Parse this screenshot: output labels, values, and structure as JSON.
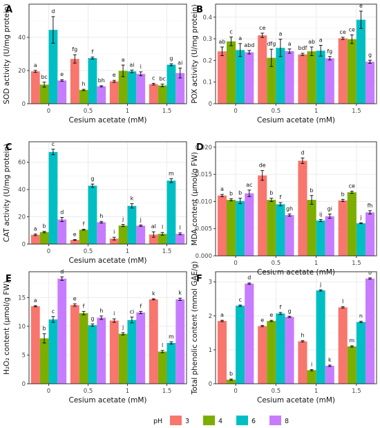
{
  "legend": {
    "title": "pH",
    "entries": [
      {
        "label": "3",
        "color": "#F8766D"
      },
      {
        "label": "4",
        "color": "#7CAE00"
      },
      {
        "label": "6",
        "color": "#00BFC4"
      },
      {
        "label": "8",
        "color": "#C77CFF"
      }
    ]
  },
  "chart_data": [
    {
      "panel": "A",
      "type": "bar",
      "xlabel": "Cesium acetate (mM)",
      "ylabel": "SOD activity (U/mg protein)",
      "categories": [
        "0",
        "0.5",
        "1",
        "1.5"
      ],
      "ylim": [
        0,
        60
      ],
      "yticks": [
        0,
        20,
        40
      ],
      "series": [
        {
          "name": "3",
          "values": [
            19.5,
            27.0,
            13.5,
            11.8
          ],
          "errors": [
            0.6,
            2.5,
            0.6,
            0.5
          ],
          "letters": [
            "a",
            "fg",
            "e",
            "c"
          ]
        },
        {
          "name": "4",
          "values": [
            11.5,
            8.3,
            19.8,
            11.0
          ],
          "errors": [
            1.5,
            0.4,
            3.5,
            0.8
          ],
          "letters": [
            "bc",
            "h",
            "a",
            "bc"
          ]
        },
        {
          "name": "6",
          "values": [
            44.5,
            27.5,
            19.5,
            23.5
          ],
          "errors": [
            8.0,
            0.6,
            0.8,
            0.6
          ],
          "letters": [
            "d",
            "f",
            "ai",
            "g"
          ]
        },
        {
          "name": "8",
          "values": [
            14.0,
            10.5,
            18.0,
            18.5
          ],
          "errors": [
            0.5,
            0.4,
            1.2,
            3.0
          ],
          "letters": [
            "e",
            "bh",
            "i",
            "ai"
          ]
        }
      ]
    },
    {
      "panel": "B",
      "type": "bar",
      "xlabel": "Cesium acetate (mM)",
      "ylabel": "POX activity (U/mg protein)",
      "categories": [
        "0",
        "0.5",
        "1",
        "1.5"
      ],
      "ylim": [
        0,
        0.46
      ],
      "yticks": [
        0.0,
        0.1,
        0.2,
        0.3,
        0.4
      ],
      "series": [
        {
          "name": "3",
          "values": [
            0.242,
            0.316,
            0.228,
            0.302
          ],
          "errors": [
            0.02,
            0.01,
            0.005,
            0.005
          ],
          "letters": [
            "ab",
            "ce",
            "bdf",
            "ce"
          ]
        },
        {
          "name": "4",
          "values": [
            0.288,
            0.212,
            0.242,
            0.298
          ],
          "errors": [
            0.02,
            0.04,
            0.02,
            0.02
          ],
          "letters": [
            "c",
            "dfg",
            "ab",
            "ce"
          ]
        },
        {
          "name": "6",
          "values": [
            0.248,
            0.258,
            0.245,
            0.388
          ],
          "errors": [
            0.03,
            0.04,
            0.025,
            0.04
          ],
          "letters": [
            "a",
            "a",
            "a",
            "e"
          ]
        },
        {
          "name": "8",
          "values": [
            0.238,
            0.243,
            0.21,
            0.194
          ],
          "errors": [
            0.008,
            0.01,
            0.008,
            0.007
          ],
          "letters": [
            "abd",
            "a",
            "fg",
            "g"
          ]
        }
      ]
    },
    {
      "panel": "C",
      "type": "bar",
      "xlabel": "Cesium acetate (mM)",
      "ylabel": "CAT activity (U/mg protein)",
      "categories": [
        "0",
        "0.5",
        "1",
        "1.5"
      ],
      "ylim": [
        0,
        75
      ],
      "yticks": [
        0,
        20,
        40,
        60
      ],
      "series": [
        {
          "name": "3",
          "values": [
            6.8,
            3.0,
            4.0,
            7.0
          ],
          "errors": [
            0.6,
            0.3,
            1.0,
            2.0
          ],
          "letters": [
            "a",
            "e",
            "i",
            "al"
          ]
        },
        {
          "name": "4",
          "values": [
            8.8,
            10.5,
            13.6,
            7.5
          ],
          "errors": [
            0.5,
            0.4,
            0.8,
            1.0
          ],
          "letters": [
            "b",
            "f",
            "j",
            "l"
          ]
        },
        {
          "name": "6",
          "values": [
            67.5,
            42.8,
            28.0,
            46.5
          ],
          "errors": [
            2.0,
            1.2,
            1.6,
            1.4
          ],
          "letters": [
            "c",
            "g",
            "k",
            "m"
          ]
        },
        {
          "name": "8",
          "values": [
            18.0,
            16.0,
            13.5,
            7.5
          ],
          "errors": [
            1.5,
            0.6,
            0.5,
            0.7
          ],
          "letters": [
            "d",
            "h",
            "j",
            "l"
          ]
        }
      ]
    },
    {
      "panel": "D",
      "type": "bar",
      "xlabel": "Cesium acetate (mM)",
      "ylabel": "MDA content (µmol/g FW)",
      "categories": [
        "0",
        "0.5",
        "1",
        "1.5"
      ],
      "ylim": [
        0,
        0.021
      ],
      "yticks": [
        0.0,
        0.005,
        0.01,
        0.015,
        0.02
      ],
      "ytick_labels": [
        "0.000",
        "0.005",
        "0.010",
        "0.015",
        "0.020"
      ],
      "series": [
        {
          "name": "3",
          "values": [
            0.0111,
            0.0148,
            0.0175,
            0.0102
          ],
          "errors": [
            0.0002,
            0.0009,
            0.0005,
            0.0002
          ],
          "letters": [
            "a",
            "de",
            "d",
            "b"
          ]
        },
        {
          "name": "4",
          "values": [
            0.0103,
            0.0103,
            0.0103,
            0.0117
          ],
          "errors": [
            0.0002,
            0.0003,
            0.0008,
            0.0002
          ],
          "letters": [
            "b",
            "b",
            "b",
            "ce"
          ]
        },
        {
          "name": "6",
          "values": [
            0.0101,
            0.0095,
            0.0065,
            0.006
          ],
          "errors": [
            0.0005,
            0.0003,
            0.0002,
            0.0001
          ],
          "letters": [
            "b",
            "f",
            "ij",
            "j"
          ]
        },
        {
          "name": "8",
          "values": [
            0.0115,
            0.0075,
            0.0073,
            0.008
          ],
          "errors": [
            0.0006,
            0.0002,
            0.0004,
            0.0003
          ],
          "letters": [
            "ac",
            "gh",
            "gi",
            "fh"
          ]
        }
      ]
    },
    {
      "panel": "E",
      "type": "bar",
      "xlabel": "Cesium acetate (mM)",
      "ylabel": "H₂O₂ content (µmol/g FW)",
      "categories": [
        "0",
        "0.5",
        "1",
        "1.5"
      ],
      "ylim": [
        0,
        19.5
      ],
      "yticks": [
        0,
        5,
        10,
        15
      ],
      "series": [
        {
          "name": "3",
          "values": [
            13.5,
            13.7,
            11.0,
            14.7
          ],
          "errors": [
            0.1,
            0.2,
            0.3,
            0.1
          ],
          "letters": [
            "a",
            "e",
            "i",
            "k"
          ]
        },
        {
          "name": "4",
          "values": [
            7.9,
            12.3,
            8.7,
            5.6
          ],
          "errors": [
            0.8,
            0.3,
            0.2,
            0.2
          ],
          "letters": [
            "b",
            "f",
            "j",
            "l"
          ]
        },
        {
          "name": "6",
          "values": [
            11.2,
            10.2,
            11.1,
            7.1
          ],
          "errors": [
            0.5,
            0.2,
            0.5,
            0.2
          ],
          "letters": [
            "c",
            "g",
            "ci",
            "m"
          ]
        },
        {
          "name": "8",
          "values": [
            18.3,
            11.5,
            12.4,
            14.7
          ],
          "errors": [
            0.3,
            0.3,
            0.2,
            0.2
          ],
          "letters": [
            "d",
            "h",
            "f",
            "k"
          ]
        }
      ]
    },
    {
      "panel": "F",
      "type": "bar",
      "xlabel": "Cesium acetate (mM)",
      "ylabel": "Total phenolic content (mmol GAE/g)",
      "categories": [
        "0",
        "0.5",
        "1",
        "1.5"
      ],
      "ylim": [
        0,
        3.3
      ],
      "yticks": [
        0,
        1,
        2,
        3
      ],
      "series": [
        {
          "name": "3",
          "values": [
            1.85,
            1.7,
            1.25,
            2.25
          ],
          "errors": [
            0.02,
            0.02,
            0.02,
            0.02
          ],
          "letters": [
            "a",
            "e",
            "h",
            "l"
          ]
        },
        {
          "name": "4",
          "values": [
            0.12,
            1.85,
            0.4,
            1.1
          ],
          "errors": [
            0.02,
            0.02,
            0.02,
            0.02
          ],
          "letters": [
            "b",
            "e",
            "i",
            "m"
          ]
        },
        {
          "name": "6",
          "values": [
            2.3,
            2.07,
            2.75,
            1.82
          ],
          "errors": [
            0.02,
            0.03,
            0.02,
            0.02
          ],
          "letters": [
            "c",
            "f",
            "j",
            "n"
          ]
        },
        {
          "name": "8",
          "values": [
            2.95,
            1.97,
            0.53,
            3.1
          ],
          "errors": [
            0.02,
            0.02,
            0.02,
            0.02
          ],
          "letters": [
            "d",
            "g",
            "k",
            "o"
          ]
        }
      ]
    }
  ]
}
